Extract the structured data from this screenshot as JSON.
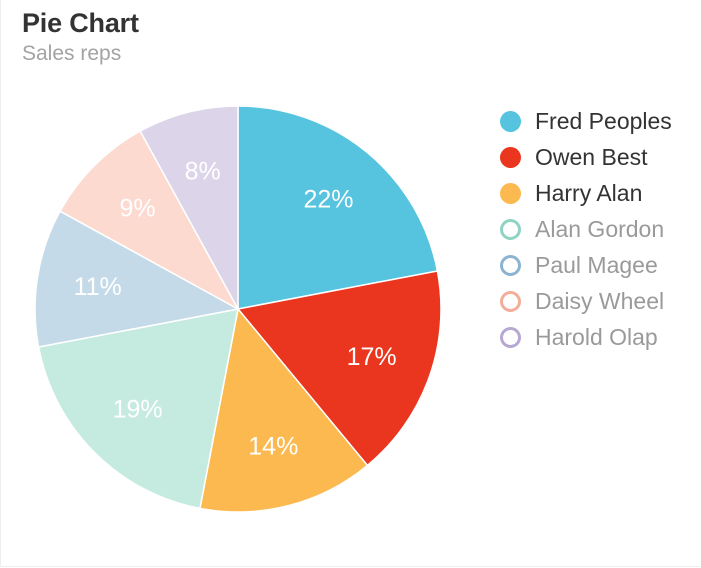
{
  "header": {
    "title": "Pie Chart",
    "subtitle": "Sales reps"
  },
  "chart_data": {
    "type": "pie",
    "title": "Pie Chart",
    "subtitle": "Sales reps",
    "legend_position": "right",
    "slices": [
      {
        "name": "Fred Peoples",
        "value": 22,
        "label": "22%",
        "color": "#56c3df",
        "legend_active": true
      },
      {
        "name": "Owen Best",
        "value": 17,
        "label": "17%",
        "color": "#ea361e",
        "legend_active": true
      },
      {
        "name": "Harry Alan",
        "value": 14,
        "label": "14%",
        "color": "#fbb94f",
        "legend_active": true
      },
      {
        "name": "Alan Gordon",
        "value": 19,
        "label": "19%",
        "color": "#c5ebe0",
        "stroke": "#8fd4c2",
        "legend_active": false
      },
      {
        "name": "Paul Magee",
        "value": 11,
        "label": "11%",
        "color": "#c5dae8",
        "stroke": "#8cb4d1",
        "legend_active": false
      },
      {
        "name": "Daisy Wheel",
        "value": 9,
        "label": "9%",
        "color": "#fddad0",
        "stroke": "#f3ae9a",
        "legend_active": false
      },
      {
        "name": "Harold Olap",
        "value": 8,
        "label": "8%",
        "color": "#dcd5ea",
        "stroke": "#b5a8d2",
        "legend_active": false
      }
    ]
  }
}
